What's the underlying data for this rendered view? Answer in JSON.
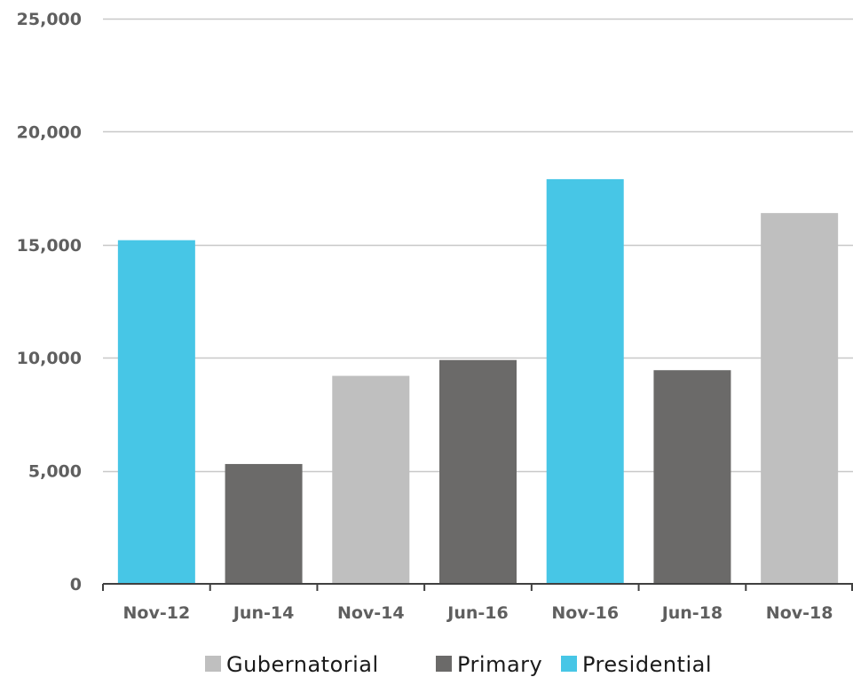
{
  "chart_data": {
    "type": "bar",
    "title": "",
    "xlabel": "",
    "ylabel": "",
    "categories": [
      "Nov-12",
      "Jun-14",
      "Nov-14",
      "Jun-16",
      "Nov-16",
      "Jun-18",
      "Nov-18"
    ],
    "values": [
      15200,
      5300,
      9200,
      9900,
      17900,
      9450,
      16400
    ],
    "bar_types": [
      "Presidential",
      "Primary",
      "Gubernatorial",
      "Primary",
      "Presidential",
      "Primary",
      "Gubernatorial"
    ],
    "ylim": [
      0,
      25000
    ],
    "yticks": [
      0,
      5000,
      10000,
      15000,
      20000,
      25000
    ],
    "ytick_labels": [
      "0",
      "5,000",
      "10,000",
      "15,000",
      "20,000",
      "25,000"
    ],
    "grid": "horizontal",
    "legend": {
      "placement": "bottom",
      "entries": [
        {
          "name": "Gubernatorial",
          "color": "#bfbfbf"
        },
        {
          "name": "Primary",
          "color": "#6b6a69"
        },
        {
          "name": "Presidential",
          "color": "#47c6e6"
        }
      ]
    },
    "colors": {
      "gridline": "#c8c8c8",
      "axis": "#404040",
      "tick_text": "#5f5f5f"
    }
  }
}
